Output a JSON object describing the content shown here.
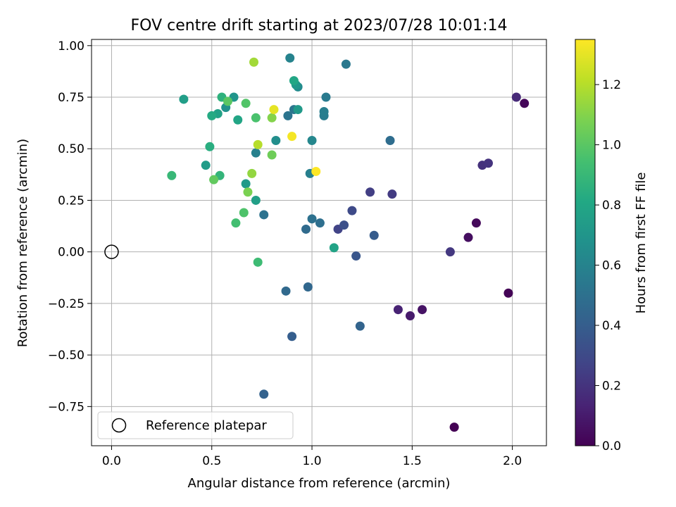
{
  "chart_data": {
    "type": "scatter",
    "title": "FOV centre drift starting at 2023/07/28 10:01:14",
    "xlabel": "Angular distance from reference (arcmin)",
    "ylabel": "Rotation from reference (arcmin)",
    "xlim": [
      -0.1,
      2.17
    ],
    "ylim": [
      -0.94,
      1.03
    ],
    "xticks": [
      0.0,
      0.5,
      1.0,
      1.5,
      2.0
    ],
    "xtick_labels": [
      "0.0",
      "0.5",
      "1.0",
      "1.5",
      "2.0"
    ],
    "yticks": [
      -0.75,
      -0.5,
      -0.25,
      0.0,
      0.25,
      0.5,
      0.75,
      1.0
    ],
    "ytick_labels": [
      "−0.75",
      "−0.50",
      "−0.25",
      "0.00",
      "0.25",
      "0.50",
      "0.75",
      "1.00"
    ],
    "grid": true,
    "colormap": "viridis",
    "colorbar": {
      "label": "Hours from first FF file",
      "range": [
        0.0,
        1.35
      ],
      "ticks": [
        0.0,
        0.2,
        0.4,
        0.6,
        0.8,
        1.0,
        1.2
      ],
      "tick_labels": [
        "0.0",
        "0.2",
        "0.4",
        "0.6",
        "0.8",
        "1.0",
        "1.2"
      ]
    },
    "reference": {
      "x": 0.0,
      "y": 0.0,
      "label": "Reference platepar"
    },
    "legend": {
      "position": "lower-left",
      "entries": [
        "Reference platepar"
      ]
    },
    "points": [
      {
        "x": 1.71,
        "y": -0.85,
        "c": 0.0
      },
      {
        "x": 1.98,
        "y": -0.2,
        "c": 0.01
      },
      {
        "x": 2.06,
        "y": 0.72,
        "c": 0.02
      },
      {
        "x": 1.82,
        "y": 0.14,
        "c": 0.03
      },
      {
        "x": 1.78,
        "y": 0.07,
        "c": 0.05
      },
      {
        "x": 1.55,
        "y": -0.28,
        "c": 0.07
      },
      {
        "x": 1.49,
        "y": -0.31,
        "c": 0.1
      },
      {
        "x": 1.43,
        "y": -0.28,
        "c": 0.13
      },
      {
        "x": 2.02,
        "y": 0.75,
        "c": 0.16
      },
      {
        "x": 1.85,
        "y": 0.42,
        "c": 0.19
      },
      {
        "x": 1.88,
        "y": 0.43,
        "c": 0.2
      },
      {
        "x": 1.69,
        "y": 0.0,
        "c": 0.22
      },
      {
        "x": 1.4,
        "y": 0.28,
        "c": 0.23
      },
      {
        "x": 1.29,
        "y": 0.29,
        "c": 0.25
      },
      {
        "x": 1.13,
        "y": 0.11,
        "c": 0.27
      },
      {
        "x": 1.2,
        "y": 0.2,
        "c": 0.3
      },
      {
        "x": 1.16,
        "y": 0.13,
        "c": 0.33
      },
      {
        "x": 1.22,
        "y": -0.02,
        "c": 0.36
      },
      {
        "x": 1.31,
        "y": 0.08,
        "c": 0.39
      },
      {
        "x": 0.9,
        "y": -0.41,
        "c": 0.4
      },
      {
        "x": 0.76,
        "y": -0.69,
        "c": 0.42
      },
      {
        "x": 1.24,
        "y": -0.36,
        "c": 0.43
      },
      {
        "x": 0.98,
        "y": -0.17,
        "c": 0.45
      },
      {
        "x": 0.87,
        "y": -0.19,
        "c": 0.46
      },
      {
        "x": 0.97,
        "y": 0.11,
        "c": 0.47
      },
      {
        "x": 1.39,
        "y": 0.54,
        "c": 0.48
      },
      {
        "x": 1.04,
        "y": 0.14,
        "c": 0.49
      },
      {
        "x": 1.0,
        "y": 0.16,
        "c": 0.5
      },
      {
        "x": 0.76,
        "y": 0.18,
        "c": 0.51
      },
      {
        "x": 0.88,
        "y": 0.66,
        "c": 0.52
      },
      {
        "x": 0.91,
        "y": 0.69,
        "c": 0.53
      },
      {
        "x": 1.17,
        "y": 0.91,
        "c": 0.54
      },
      {
        "x": 1.07,
        "y": 0.75,
        "c": 0.55
      },
      {
        "x": 1.06,
        "y": 0.66,
        "c": 0.56
      },
      {
        "x": 1.06,
        "y": 0.68,
        "c": 0.57
      },
      {
        "x": 0.99,
        "y": 0.38,
        "c": 0.58
      },
      {
        "x": 0.72,
        "y": 0.48,
        "c": 0.59
      },
      {
        "x": 0.89,
        "y": 0.94,
        "c": 0.6
      },
      {
        "x": 1.0,
        "y": 0.54,
        "c": 0.62
      },
      {
        "x": 0.93,
        "y": 0.8,
        "c": 0.64
      },
      {
        "x": 0.82,
        "y": 0.54,
        "c": 0.66
      },
      {
        "x": 0.57,
        "y": 0.7,
        "c": 0.68
      },
      {
        "x": 0.61,
        "y": 0.75,
        "c": 0.7
      },
      {
        "x": 0.92,
        "y": 0.81,
        "c": 0.71
      },
      {
        "x": 0.93,
        "y": 0.69,
        "c": 0.72
      },
      {
        "x": 0.67,
        "y": 0.33,
        "c": 0.73
      },
      {
        "x": 0.47,
        "y": 0.42,
        "c": 0.74
      },
      {
        "x": 0.36,
        "y": 0.74,
        "c": 0.75
      },
      {
        "x": 0.72,
        "y": 0.25,
        "c": 0.76
      },
      {
        "x": 0.53,
        "y": 0.67,
        "c": 0.77
      },
      {
        "x": 1.11,
        "y": 0.02,
        "c": 0.78
      },
      {
        "x": 0.63,
        "y": 0.64,
        "c": 0.79
      },
      {
        "x": 0.91,
        "y": 0.83,
        "c": 0.8
      },
      {
        "x": 0.5,
        "y": 0.66,
        "c": 0.82
      },
      {
        "x": 0.49,
        "y": 0.51,
        "c": 0.84
      },
      {
        "x": 0.55,
        "y": 0.75,
        "c": 0.86
      },
      {
        "x": 0.54,
        "y": 0.37,
        "c": 0.88
      },
      {
        "x": 0.3,
        "y": 0.37,
        "c": 0.9
      },
      {
        "x": 0.73,
        "y": -0.05,
        "c": 0.92
      },
      {
        "x": 0.62,
        "y": 0.14,
        "c": 0.94
      },
      {
        "x": 0.72,
        "y": 0.65,
        "c": 0.96
      },
      {
        "x": 0.66,
        "y": 0.19,
        "c": 0.97
      },
      {
        "x": 0.67,
        "y": 0.72,
        "c": 0.98
      },
      {
        "x": 0.58,
        "y": 0.73,
        "c": 1.0
      },
      {
        "x": 0.51,
        "y": 0.35,
        "c": 1.02
      },
      {
        "x": 0.8,
        "y": 0.47,
        "c": 1.05
      },
      {
        "x": 0.68,
        "y": 0.29,
        "c": 1.08
      },
      {
        "x": 0.8,
        "y": 0.65,
        "c": 1.1
      },
      {
        "x": 0.7,
        "y": 0.38,
        "c": 1.13
      },
      {
        "x": 0.71,
        "y": 0.92,
        "c": 1.16
      },
      {
        "x": 0.73,
        "y": 0.52,
        "c": 1.2
      },
      {
        "x": 0.81,
        "y": 0.69,
        "c": 1.3
      },
      {
        "x": 0.9,
        "y": 0.56,
        "c": 1.33
      },
      {
        "x": 1.02,
        "y": 0.39,
        "c": 1.35
      }
    ]
  }
}
